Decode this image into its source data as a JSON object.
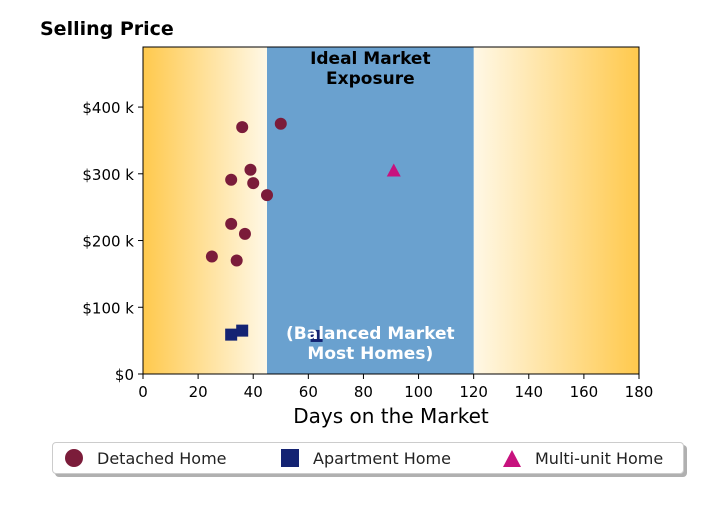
{
  "chart_data": {
    "type": "scatter",
    "title": "Selling Price",
    "xlabel": "Days on the Market",
    "ylabel": "",
    "xlim": [
      0,
      180
    ],
    "ylim": [
      0,
      490000
    ],
    "x_ticks": [
      0,
      20,
      40,
      60,
      80,
      100,
      120,
      140,
      160,
      180
    ],
    "x_tick_labels": [
      "0",
      "20",
      "40",
      "60",
      "80",
      "100",
      "120",
      "140",
      "160",
      "180"
    ],
    "y_ticks": [
      0,
      100000,
      200000,
      300000,
      400000
    ],
    "y_tick_labels": [
      "$0",
      "$100 k",
      "$200 k",
      "$300 k",
      "$400 k"
    ],
    "grid": false,
    "legend_position": "bottom",
    "band": {
      "x_range": [
        45,
        120
      ],
      "color": "#6aa1cf",
      "title": "Ideal Market Exposure",
      "title_lines": [
        "Ideal Market",
        "Exposure"
      ],
      "note": "(Balanced Market Most Homes)",
      "note_lines": [
        "(Balanced Market",
        "Most Homes)"
      ]
    },
    "background_colors": [
      "#ffc94d",
      "#fff8e6"
    ],
    "series": [
      {
        "name": "Detached Home",
        "marker": "circle",
        "color": "#7b1c3a",
        "points": [
          [
            25,
            176000
          ],
          [
            32,
            225000
          ],
          [
            32,
            291000
          ],
          [
            34,
            170000
          ],
          [
            36,
            370000
          ],
          [
            37,
            210000
          ],
          [
            39,
            306000
          ],
          [
            40,
            286000
          ],
          [
            45,
            268000
          ],
          [
            50,
            375000
          ]
        ]
      },
      {
        "name": "Apartment Home",
        "marker": "square",
        "color": "#142373",
        "points": [
          [
            32,
            59000
          ],
          [
            36,
            65000
          ],
          [
            63,
            57000
          ]
        ]
      },
      {
        "name": "Multi-unit Home",
        "marker": "triangle",
        "color": "#c7127e",
        "points": [
          [
            91,
            305000
          ]
        ]
      }
    ]
  }
}
